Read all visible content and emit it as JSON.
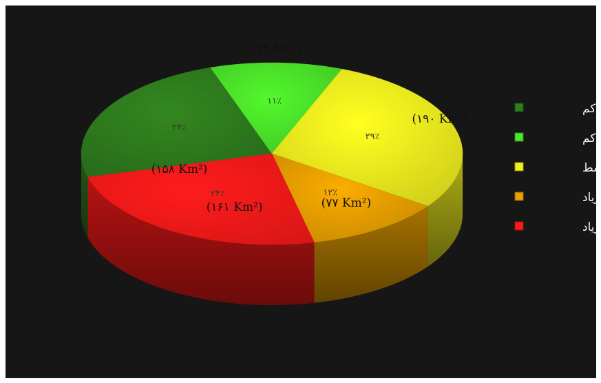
{
  "chart_data": {
    "type": "pie",
    "three_d": true,
    "unit": "Km²",
    "legend_position": "right",
    "slices": [
      {
        "label": "خیلی کم",
        "value": 158,
        "percent_label": "۲۴٪",
        "area_label": "(۱۵۸ Km²)",
        "color": "#2f7d1e"
      },
      {
        "label": "کم",
        "value": 74,
        "percent_label": "۱۱٪",
        "area_label": "(۷۴ Km²)",
        "color": "#4ce62a"
      },
      {
        "label": "متوسط",
        "value": 190,
        "percent_label": "۲۹٪",
        "area_label": "(۱۹۰ Km²)",
        "color": "#f2f01e"
      },
      {
        "label": "زیاد",
        "value": 77,
        "percent_label": "۱۲٪",
        "area_label": "(۷۷ Km²)",
        "color": "#e8a000"
      },
      {
        "label": "خیلی زیاد",
        "value": 161,
        "percent_label": "۲۴٪",
        "area_label": "(۱۶۱ Km²)",
        "color": "#ff1a1a"
      }
    ]
  }
}
